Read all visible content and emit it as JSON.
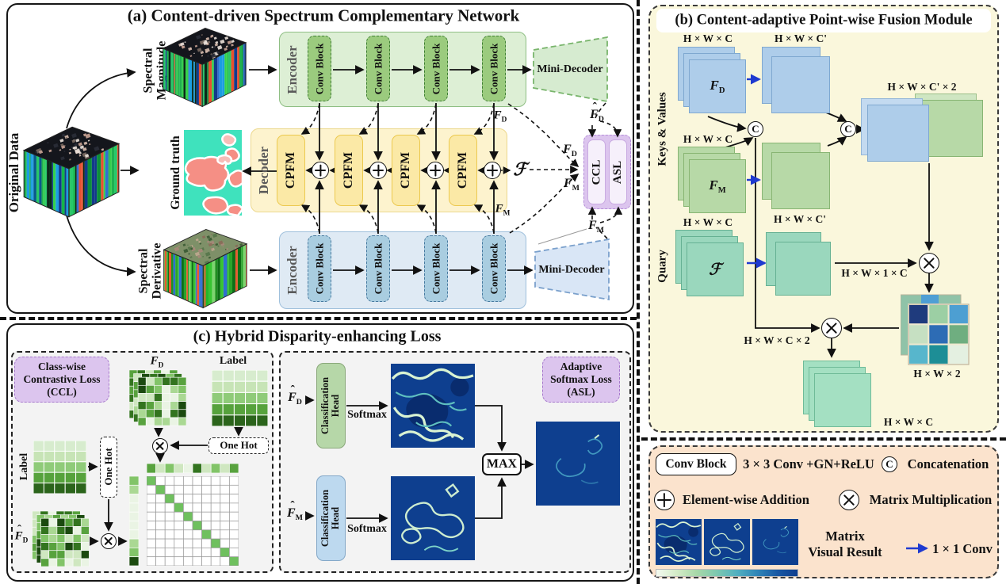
{
  "panel_a": {
    "title": "(a) Content-driven Spectrum Complementary Network",
    "original_data": "Original Data",
    "spectral_magnitude_1": "Spectral",
    "spectral_magnitude_2": "Magnitude",
    "ground_truth": "Ground truth",
    "spectral_derivative_1": "Spectral",
    "spectral_derivative_2": "Derivative",
    "encoder": "Encoder",
    "conv_block": "Conv Block",
    "mini_decoder": "Mini-Decoder",
    "decoder": "Decoder",
    "cpfm": "CPFM",
    "ccl": "CCL",
    "asl": "ASL"
  },
  "panel_b": {
    "title": "(b) Content-adaptive Point-wise Fusion Module",
    "keys_values": "Keys & Values",
    "query": "Quary",
    "dim_hwc": "H × W × C",
    "dim_hwcp": "H × W × C'",
    "dim_hwcp2": "H × W × C' × 2",
    "dim_hw1c": "H × W × 1 × C",
    "dim_hwc2": "H × W × C × 2",
    "dim_hw2": "H × W × 2",
    "concat_c": "C"
  },
  "panel_c": {
    "title": "(c) Hybrid Disparity-enhancing Loss",
    "ccl_line1": "Class-wise",
    "ccl_line2": "Contrastive Loss",
    "ccl_line3": "(CCL)",
    "asl_line1": "Adaptive",
    "asl_line2": "Softmax Loss",
    "asl_line3": "(ASL)",
    "label": "Label",
    "one_hot": "One Hot",
    "classification": "Classification",
    "head": "Head",
    "softmax": "Softmax",
    "max": "MAX"
  },
  "legend": {
    "conv_block": "Conv Block",
    "conv_desc": "3 × 3 Conv +GN+ReLU",
    "concat_c": "C",
    "concat": "Concatenation",
    "add": "Element-wise Addition",
    "matmul": "Matrix Multiplication",
    "visual_1": "Matrix",
    "visual_2": "Visual Result",
    "conv1x1": "1 × 1 Conv"
  },
  "symbols": {
    "F": "F",
    "D": "D",
    "M": "M",
    "hat": "ˆ",
    "scriptF": "ℱ"
  },
  "icons": {
    "plus-circle-icon": "element-wise addition operator",
    "times-circle-icon": "matrix multiplication operator",
    "c-circle-icon": "concatenation operator",
    "arrow-icon": "data-flow arrow",
    "blue-arrow-icon": "1 × 1 convolution arrow"
  },
  "colors": {
    "encoder_green_block": "#9bcb7e",
    "encoder_green_bg": "#ddefd5",
    "decoder_yellow_bg": "#fdf3ce",
    "cpfm_yellow": "#fbe9a6",
    "encoder_blue_block": "#a9cde0",
    "encoder_blue_bg": "#dfeaf4",
    "loss_purple": "#dcc5ee",
    "panel_b_bg": "#faf7dc",
    "legend_bg": "#fbe3cd",
    "gt_teal": "#3fe2bd",
    "gt_pink": "#f58f85",
    "heatmap_blue": "#0e3f8f",
    "fd_blue": "#aecdea",
    "fm_green": "#b7d9a7",
    "query_mint": "#9ad7bd",
    "conv1x1_arrow_blue": "#1f3ad0"
  }
}
